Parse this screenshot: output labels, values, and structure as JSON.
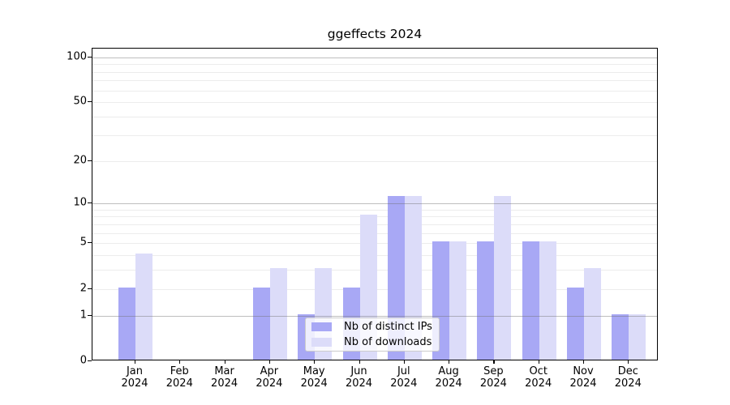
{
  "chart_data": {
    "type": "bar",
    "title": "ggeffects 2024",
    "months": [
      "Jan",
      "Feb",
      "Mar",
      "Apr",
      "May",
      "Jun",
      "Jul",
      "Aug",
      "Sep",
      "Oct",
      "Nov",
      "Dec"
    ],
    "year": "2024",
    "series": [
      {
        "name": "Nb of distinct IPs",
        "color": "#a8a8f5",
        "values": [
          2,
          0,
          0,
          2,
          1,
          2,
          11,
          5,
          5,
          5,
          2,
          1
        ]
      },
      {
        "name": "Nb of downloads",
        "color": "#dcdcf9",
        "values": [
          4,
          0,
          0,
          3,
          3,
          8,
          11,
          5,
          11,
          5,
          3,
          1
        ]
      }
    ],
    "y_axis": {
      "scale": "log1p",
      "tick_labels": [
        0,
        1,
        2,
        5,
        10,
        20,
        50,
        100
      ],
      "major_gridlines": [
        1,
        10,
        100
      ],
      "minor_gridlines": [
        2,
        3,
        4,
        5,
        6,
        7,
        8,
        9,
        20,
        30,
        40,
        50,
        60,
        70,
        80,
        90
      ],
      "ylim": [
        0,
        113
      ]
    },
    "xlabel": "",
    "ylabel": "",
    "legend_position": "lower center",
    "colors": {
      "grid_minor": "#ececec",
      "grid_major": "#b0b0b0",
      "spine": "#000000",
      "background": "#ffffff"
    }
  }
}
